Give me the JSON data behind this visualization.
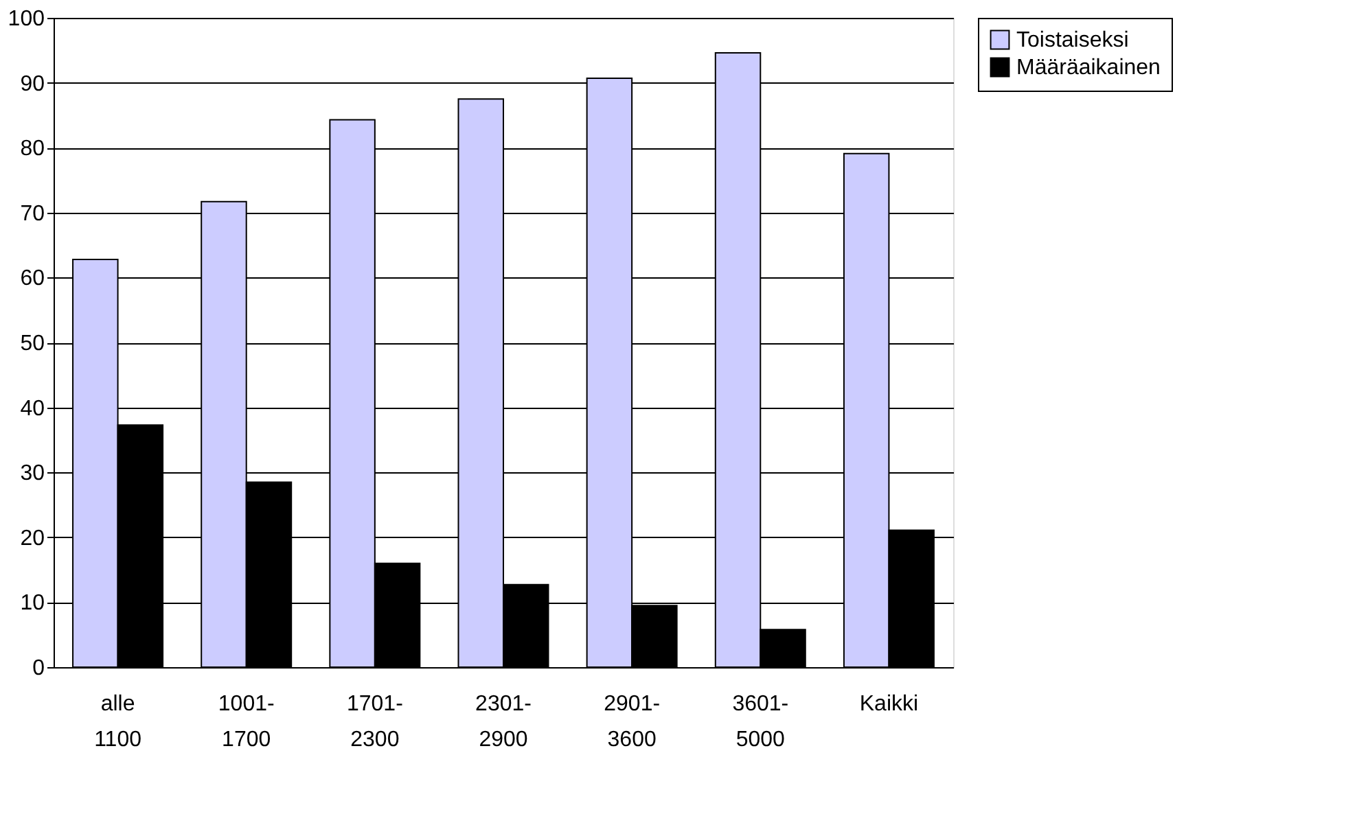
{
  "chart_data": {
    "type": "bar",
    "categories": [
      "alle\n1100",
      "1001-\n1700",
      "1701-\n2300",
      "2301-\n2900",
      "2901-\n3600",
      "3601-\n5000",
      "Kaikki"
    ],
    "series": [
      {
        "name": "Toistaiseksi",
        "color": "#ccccff",
        "values": [
          62.8,
          71.7,
          84.3,
          87.5,
          90.7,
          94.6,
          79.1
        ]
      },
      {
        "name": "Määräaikainen",
        "color": "#000000",
        "values": [
          37.3,
          28.5,
          16.0,
          12.7,
          9.5,
          5.8,
          21.1
        ]
      }
    ],
    "ylim": [
      0,
      100
    ],
    "yticks": [
      0,
      10,
      20,
      30,
      40,
      50,
      60,
      70,
      80,
      90,
      100
    ],
    "grid": "y",
    "legend": "right"
  }
}
